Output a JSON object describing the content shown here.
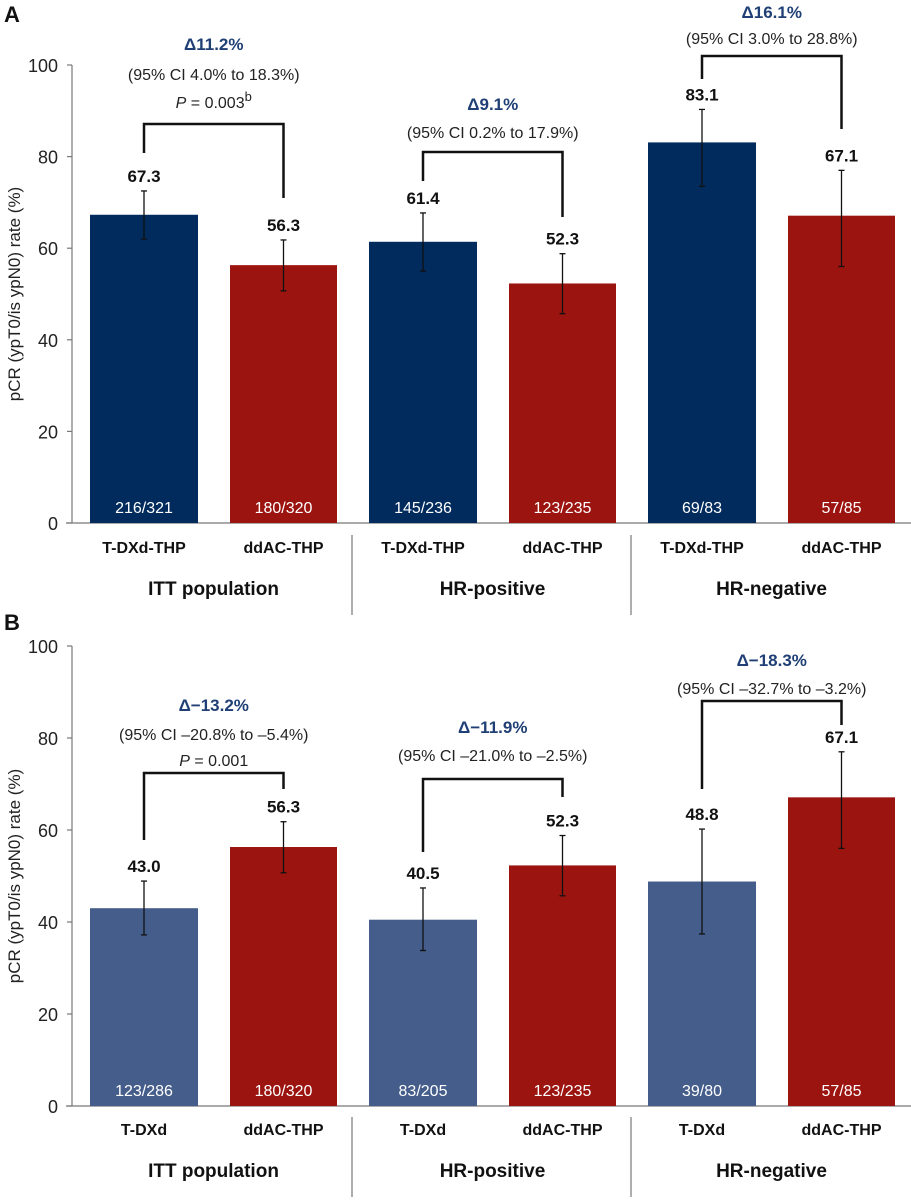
{
  "colors": {
    "tdxd_thp": "#002b5c",
    "tdxd": "#455d8a",
    "ddac_thp": "#9b1410",
    "delta_text": "#1f3f75",
    "axis": "#777777",
    "text": "#111111"
  },
  "chart_data": [
    {
      "panel": "A",
      "type": "bar",
      "ylabel": "pCR (ypT0/is ypN0) rate (%)",
      "ylim": [
        0,
        100
      ],
      "yticks": [
        0,
        20,
        40,
        60,
        80,
        100
      ],
      "grid": false,
      "groups": [
        {
          "label": "ITT population",
          "bars": [
            {
              "category": "T-DXd-THP",
              "value": 67.3,
              "ci": [
                62.0,
                72.5
              ],
              "n": "216/321",
              "color_key": "tdxd_thp"
            },
            {
              "category": "ddAC-THP",
              "value": 56.3,
              "ci": [
                50.7,
                61.8
              ],
              "n": "180/320",
              "color_key": "ddac_thp"
            }
          ],
          "comparison": {
            "delta": "Δ11.2%",
            "ci": "(95% CI 4.0% to 18.3%)",
            "p_prefix": "P",
            "p_value": " = 0.003",
            "p_superscript": "b"
          }
        },
        {
          "label": "HR-positive",
          "bars": [
            {
              "category": "T-DXd-THP",
              "value": 61.4,
              "ci": [
                55.0,
                67.7
              ],
              "n": "145/236",
              "color_key": "tdxd_thp"
            },
            {
              "category": "ddAC-THP",
              "value": 52.3,
              "ci": [
                45.7,
                58.8
              ],
              "n": "123/235",
              "color_key": "ddac_thp"
            }
          ],
          "comparison": {
            "delta": "Δ9.1%",
            "ci": "(95% CI 0.2% to 17.9%)"
          }
        },
        {
          "label": "HR-negative",
          "bars": [
            {
              "category": "T-DXd-THP",
              "value": 83.1,
              "ci": [
                73.5,
                90.3
              ],
              "n": "69/83",
              "color_key": "tdxd_thp"
            },
            {
              "category": "ddAC-THP",
              "value": 67.1,
              "ci": [
                56.0,
                77.0
              ],
              "n": "57/85",
              "color_key": "ddac_thp"
            }
          ],
          "comparison": {
            "delta": "Δ16.1%",
            "ci": "(95% CI 3.0% to 28.8%)"
          }
        }
      ]
    },
    {
      "panel": "B",
      "type": "bar",
      "ylabel": "pCR (ypT0/is ypN0) rate (%)",
      "ylim": [
        0,
        100
      ],
      "yticks": [
        0,
        20,
        40,
        60,
        80,
        100
      ],
      "grid": false,
      "groups": [
        {
          "label": "ITT population",
          "bars": [
            {
              "category": "T-DXd",
              "value": 43.0,
              "ci": [
                37.2,
                48.9
              ],
              "n": "123/286",
              "color_key": "tdxd"
            },
            {
              "category": "ddAC-THP",
              "value": 56.3,
              "ci": [
                50.7,
                61.8
              ],
              "n": "180/320",
              "color_key": "ddac_thp"
            }
          ],
          "comparison": {
            "delta": "Δ−13.2%",
            "ci": "(95% CI –20.8% to –5.4%)",
            "p_prefix": "P",
            "p_value": " = 0.001",
            "p_superscript": ""
          }
        },
        {
          "label": "HR-positive",
          "bars": [
            {
              "category": "T-DXd",
              "value": 40.5,
              "ci": [
                33.8,
                47.4
              ],
              "n": "83/205",
              "color_key": "tdxd"
            },
            {
              "category": "ddAC-THP",
              "value": 52.3,
              "ci": [
                45.7,
                58.8
              ],
              "n": "123/235",
              "color_key": "ddac_thp"
            }
          ],
          "comparison": {
            "delta": "Δ−11.9%",
            "ci": "(95% CI –21.0% to –2.5%)"
          }
        },
        {
          "label": "HR-negative",
          "bars": [
            {
              "category": "T-DXd",
              "value": 48.8,
              "ci": [
                37.4,
                60.2
              ],
              "n": "39/80",
              "color_key": "tdxd"
            },
            {
              "category": "ddAC-THP",
              "value": 67.1,
              "ci": [
                56.0,
                77.0
              ],
              "n": "57/85",
              "color_key": "ddac_thp"
            }
          ],
          "comparison": {
            "delta": "Δ−18.3%",
            "ci": "(95% CI –32.7% to –3.2%)"
          }
        }
      ]
    }
  ]
}
